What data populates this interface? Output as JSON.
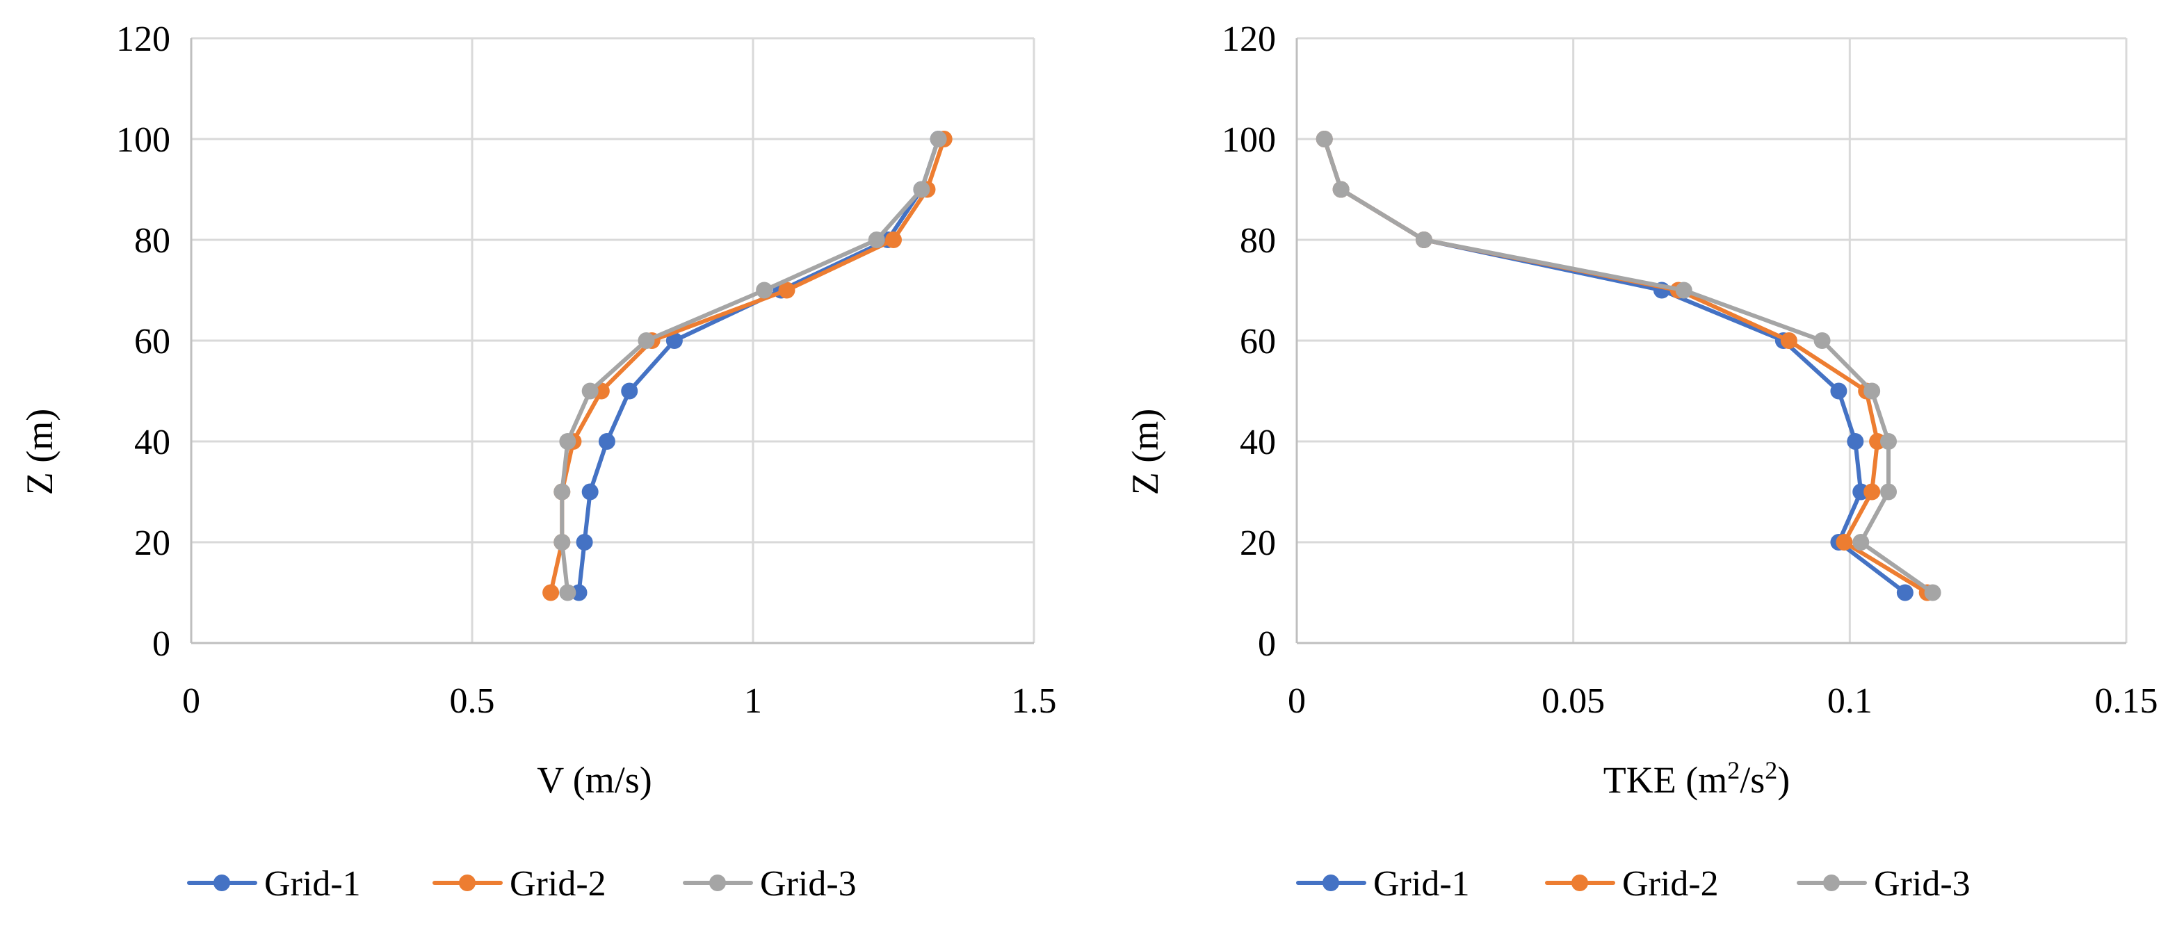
{
  "chart_data": [
    {
      "type": "line",
      "title": "",
      "xlabel": "V (m/s)",
      "ylabel": "Z (m)",
      "xlim": [
        0,
        1.5
      ],
      "ylim": [
        0,
        120
      ],
      "xticks": [
        "0",
        "0.5",
        "1",
        "1.5"
      ],
      "yticks": [
        "0",
        "20",
        "40",
        "60",
        "80",
        "100",
        "120"
      ],
      "grid": true,
      "legend_position": "bottom",
      "series": [
        {
          "name": "Grid-1",
          "color": "#4472C4",
          "points": [
            [
              0.69,
              10
            ],
            [
              0.7,
              20
            ],
            [
              0.71,
              30
            ],
            [
              0.74,
              40
            ],
            [
              0.78,
              50
            ],
            [
              0.86,
              60
            ],
            [
              1.05,
              70
            ],
            [
              1.24,
              80
            ],
            [
              1.3,
              90
            ],
            [
              1.33,
              100
            ]
          ]
        },
        {
          "name": "Grid-2",
          "color": "#ED7D31",
          "points": [
            [
              0.64,
              10
            ],
            [
              0.66,
              20
            ],
            [
              0.66,
              30
            ],
            [
              0.68,
              40
            ],
            [
              0.73,
              50
            ],
            [
              0.82,
              60
            ],
            [
              1.06,
              70
            ],
            [
              1.25,
              80
            ],
            [
              1.31,
              90
            ],
            [
              1.34,
              100
            ]
          ]
        },
        {
          "name": "Grid-3",
          "color": "#A5A5A5",
          "points": [
            [
              0.67,
              10
            ],
            [
              0.66,
              20
            ],
            [
              0.66,
              30
            ],
            [
              0.67,
              40
            ],
            [
              0.71,
              50
            ],
            [
              0.81,
              60
            ],
            [
              1.02,
              70
            ],
            [
              1.22,
              80
            ],
            [
              1.3,
              90
            ],
            [
              1.33,
              100
            ]
          ]
        }
      ]
    },
    {
      "type": "line",
      "title": "",
      "xlabel": "TKE (m",
      "xlabel_sup1": "2",
      "xlabel_mid": "/s",
      "xlabel_sup2": "2",
      "xlabel_end": ")",
      "ylabel": "Z (m)",
      "xlim": [
        0,
        0.15
      ],
      "ylim": [
        0,
        120
      ],
      "xticks": [
        "0",
        "0.05",
        "0.1",
        "0.15"
      ],
      "yticks": [
        "0",
        "20",
        "40",
        "60",
        "80",
        "100",
        "120"
      ],
      "grid": true,
      "legend_position": "bottom",
      "series": [
        {
          "name": "Grid-1",
          "color": "#4472C4",
          "points": [
            [
              0.11,
              10
            ],
            [
              0.098,
              20
            ],
            [
              0.102,
              30
            ],
            [
              0.101,
              40
            ],
            [
              0.098,
              50
            ],
            [
              0.088,
              60
            ],
            [
              0.066,
              70
            ],
            [
              0.023,
              80
            ],
            [
              0.008,
              90
            ],
            [
              0.005,
              100
            ]
          ]
        },
        {
          "name": "Grid-2",
          "color": "#ED7D31",
          "points": [
            [
              0.114,
              10
            ],
            [
              0.099,
              20
            ],
            [
              0.104,
              30
            ],
            [
              0.105,
              40
            ],
            [
              0.103,
              50
            ],
            [
              0.089,
              60
            ],
            [
              0.069,
              70
            ],
            [
              0.023,
              80
            ],
            [
              0.008,
              90
            ],
            [
              0.005,
              100
            ]
          ]
        },
        {
          "name": "Grid-3",
          "color": "#A5A5A5",
          "points": [
            [
              0.115,
              10
            ],
            [
              0.102,
              20
            ],
            [
              0.107,
              30
            ],
            [
              0.107,
              40
            ],
            [
              0.104,
              50
            ],
            [
              0.095,
              60
            ],
            [
              0.07,
              70
            ],
            [
              0.023,
              80
            ],
            [
              0.008,
              90
            ],
            [
              0.005,
              100
            ]
          ]
        }
      ]
    }
  ]
}
